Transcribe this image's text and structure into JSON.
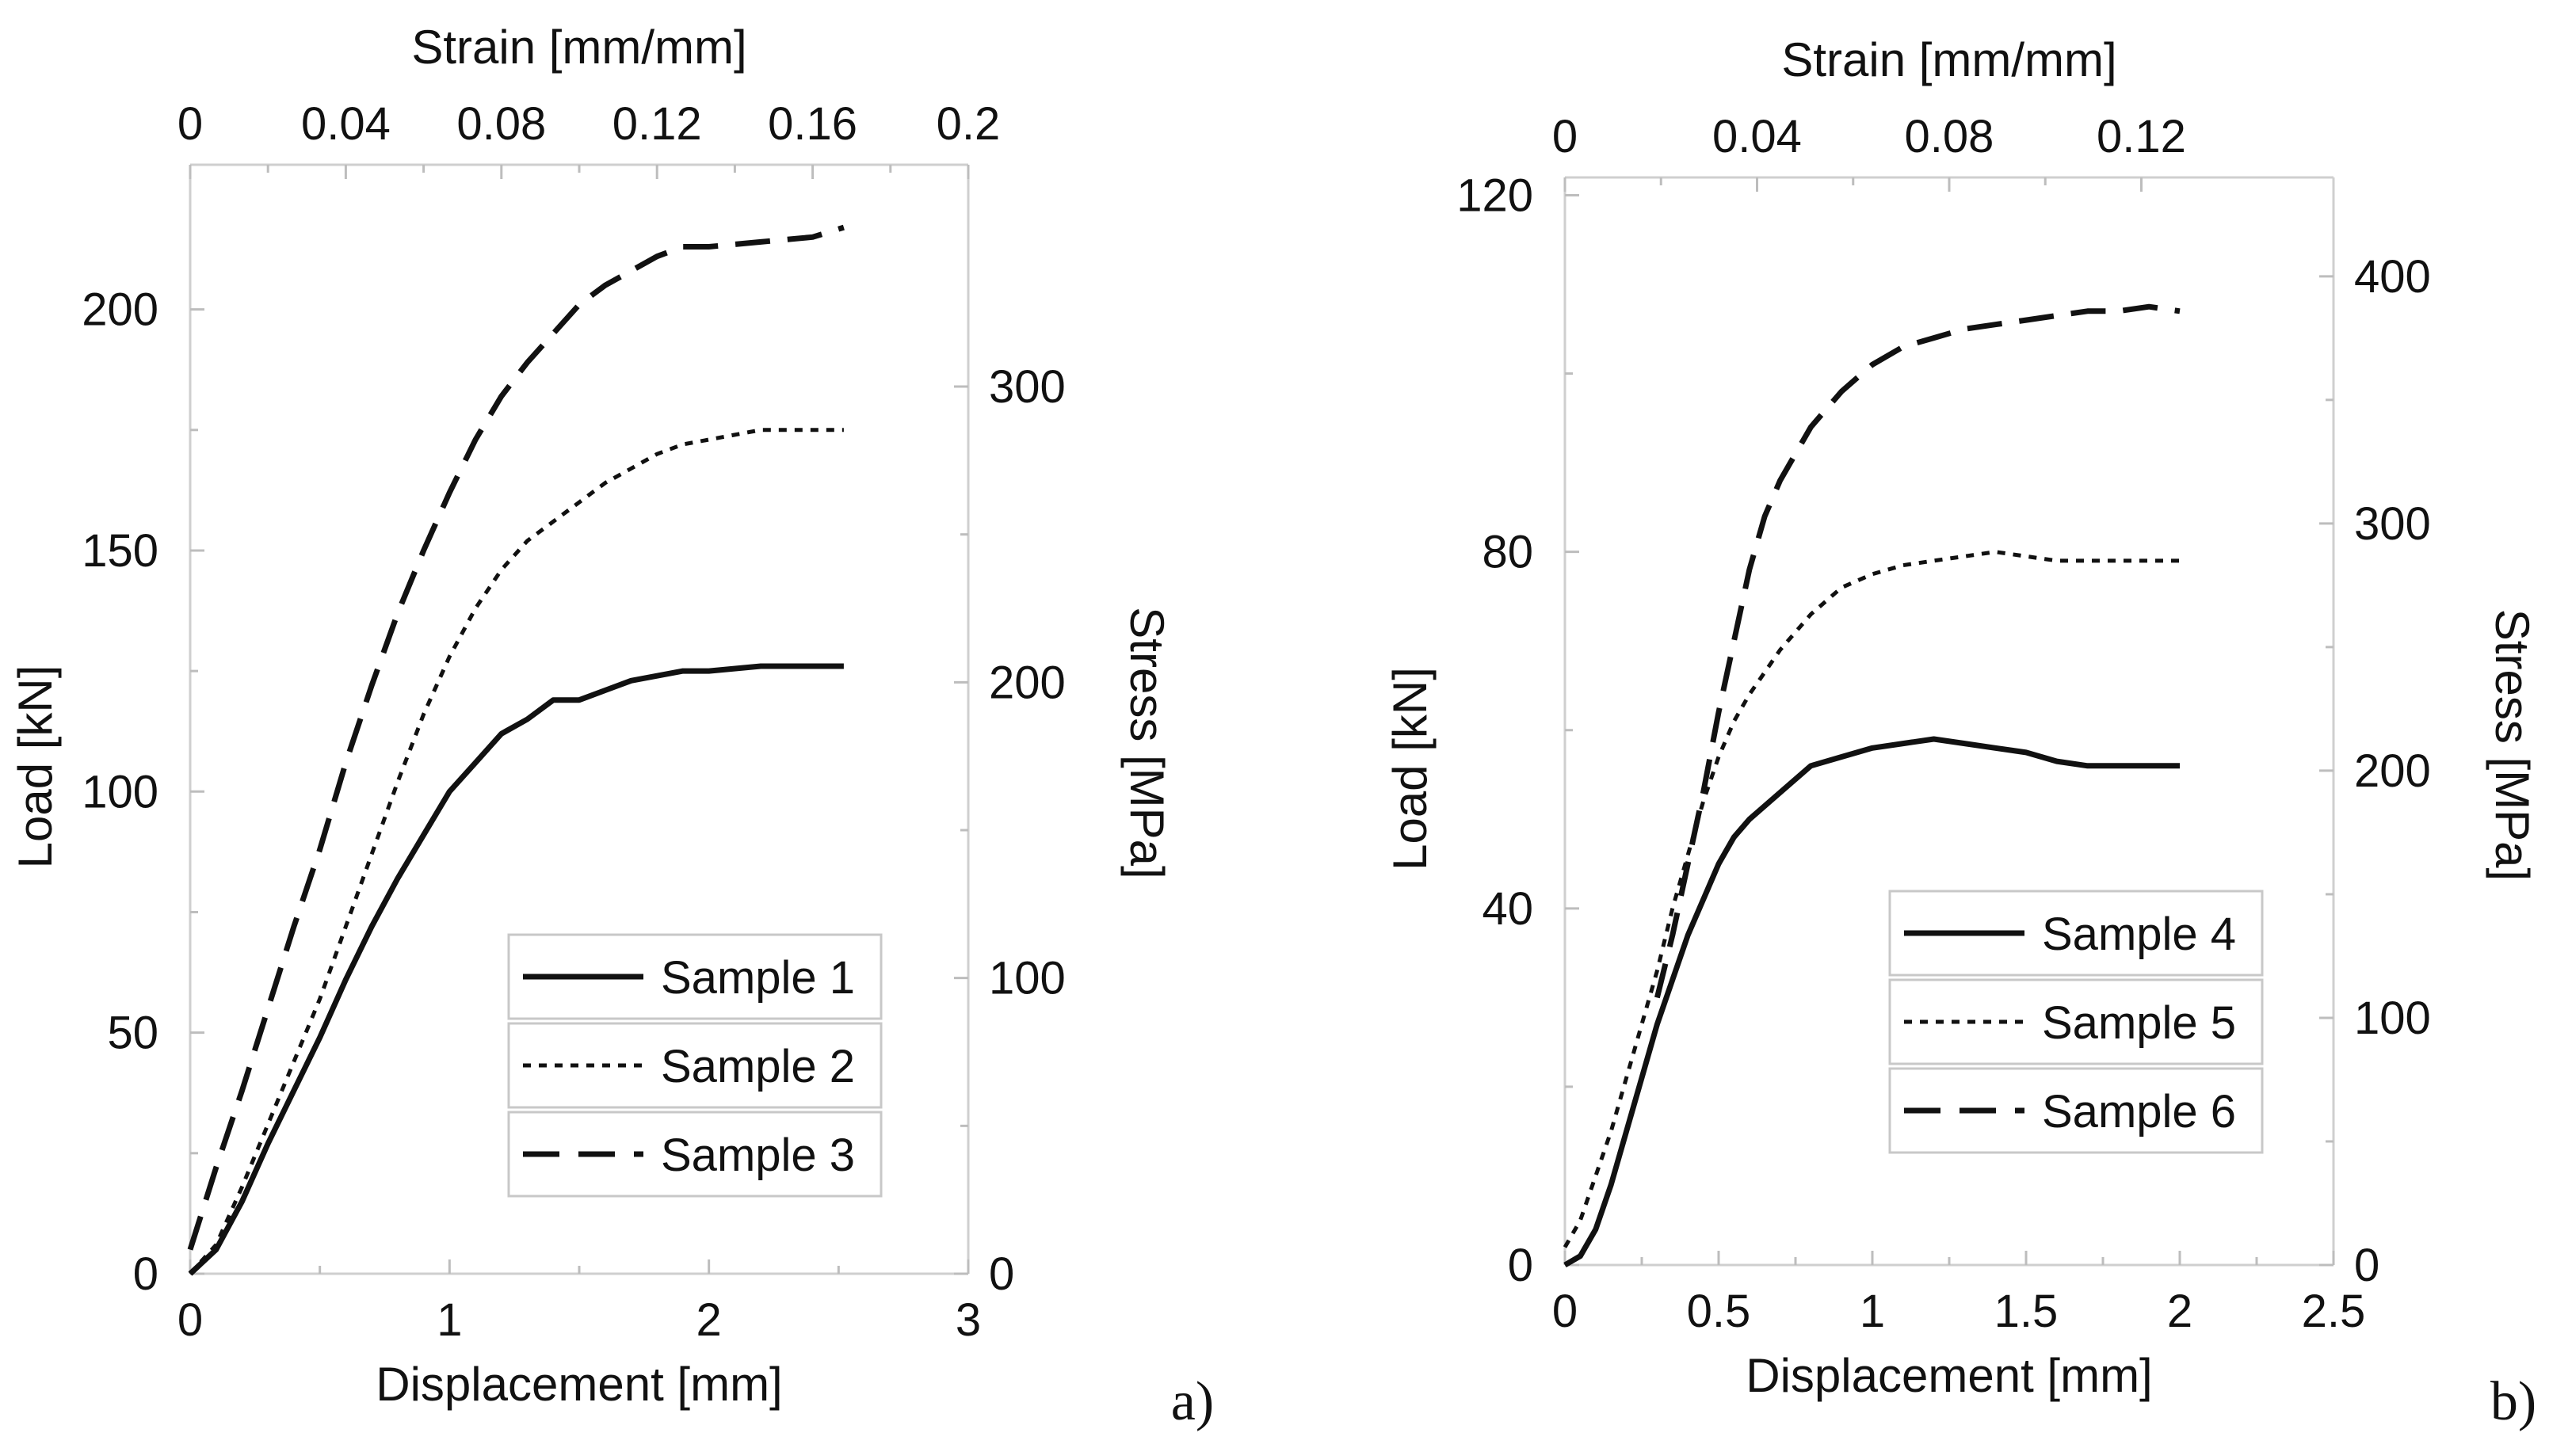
{
  "chart_data": [
    {
      "type": "line",
      "panel_label": "a)",
      "xlabel": "Displacement [mm]",
      "ylabel": "Load [kN]",
      "x2label": "Strain [mm/mm]",
      "y2label": "Stress [MPa]",
      "xlim": [
        0,
        3
      ],
      "ylim": [
        0,
        230
      ],
      "x2lim": [
        0,
        0.2
      ],
      "y2lim": [
        0,
        375
      ],
      "x_ticks": [
        0,
        1,
        2,
        3
      ],
      "x_tick_labels": [
        "0",
        "1",
        "2",
        "3"
      ],
      "y_ticks": [
        0,
        50,
        100,
        150,
        200
      ],
      "y_tick_labels": [
        "0",
        "50",
        "100",
        "150",
        "200"
      ],
      "x2_ticks": [
        0,
        0.04,
        0.08,
        0.12,
        0.16,
        0.2
      ],
      "x2_tick_labels": [
        "0",
        "0.04",
        "0.08",
        "0.12",
        "0.16",
        "0.2"
      ],
      "y2_ticks": [
        0,
        100,
        200,
        300
      ],
      "y2_tick_labels": [
        "0",
        "100",
        "200",
        "300"
      ],
      "legend_position": "bottom-right",
      "series": [
        {
          "name": "Sample 1",
          "style": "solid",
          "x": [
            0,
            0.1,
            0.2,
            0.3,
            0.4,
            0.5,
            0.6,
            0.7,
            0.8,
            0.9,
            1.0,
            1.1,
            1.2,
            1.3,
            1.4,
            1.5,
            1.6,
            1.7,
            1.8,
            1.9,
            2.0,
            2.2,
            2.4,
            2.52
          ],
          "y": [
            0,
            5,
            15,
            27,
            38,
            49,
            61,
            72,
            82,
            91,
            100,
            106,
            112,
            115,
            119,
            119,
            121,
            123,
            124,
            125,
            125,
            126,
            126,
            126
          ]
        },
        {
          "name": "Sample 2",
          "style": "dotted",
          "x": [
            0,
            0.1,
            0.2,
            0.3,
            0.4,
            0.5,
            0.6,
            0.7,
            0.8,
            0.9,
            1.0,
            1.1,
            1.2,
            1.3,
            1.4,
            1.5,
            1.6,
            1.7,
            1.8,
            1.9,
            2.0,
            2.2,
            2.4,
            2.52
          ],
          "y": [
            0,
            6,
            18,
            31,
            44,
            57,
            72,
            87,
            102,
            116,
            128,
            138,
            146,
            152,
            156,
            160,
            164,
            167,
            170,
            172,
            173,
            175,
            175,
            175
          ]
        },
        {
          "name": "Sample 3",
          "style": "dashed",
          "x": [
            0,
            0.1,
            0.2,
            0.3,
            0.4,
            0.5,
            0.6,
            0.7,
            0.8,
            0.9,
            1.0,
            1.1,
            1.2,
            1.3,
            1.4,
            1.5,
            1.6,
            1.7,
            1.8,
            1.9,
            2.0,
            2.2,
            2.4,
            2.52
          ],
          "y": [
            5,
            22,
            38,
            55,
            72,
            88,
            106,
            122,
            137,
            150,
            162,
            173,
            182,
            189,
            195,
            201,
            205,
            208,
            211,
            213,
            213,
            214,
            215,
            217
          ]
        }
      ]
    },
    {
      "type": "line",
      "panel_label": "b)",
      "xlabel": "Displacement [mm]",
      "ylabel": "Load [kN]",
      "x2label": "Strain [mm/mm]",
      "y2label": "Stress [MPa]",
      "xlim": [
        0,
        2.5
      ],
      "ylim": [
        0,
        122
      ],
      "x2lim": [
        0,
        0.16
      ],
      "y2lim": [
        0,
        440
      ],
      "x_ticks": [
        0,
        0.5,
        1,
        1.5,
        2,
        2.5
      ],
      "x_tick_labels": [
        "0",
        "0.5",
        "1",
        "1.5",
        "2",
        "2.5"
      ],
      "y_ticks": [
        0,
        40,
        80,
        120
      ],
      "y_tick_labels": [
        "0",
        "40",
        "80",
        "120"
      ],
      "x2_ticks": [
        0,
        0.04,
        0.08,
        0.12
      ],
      "x2_tick_labels": [
        "0",
        "0.04",
        "0.08",
        "0.12"
      ],
      "y2_ticks": [
        0,
        100,
        200,
        300,
        400
      ],
      "y2_tick_labels": [
        "0",
        "100",
        "200",
        "300",
        "400"
      ],
      "legend_position": "bottom-right",
      "series": [
        {
          "name": "Sample 4",
          "style": "solid",
          "x": [
            0,
            0.05,
            0.1,
            0.15,
            0.2,
            0.25,
            0.3,
            0.35,
            0.4,
            0.45,
            0.5,
            0.55,
            0.6,
            0.7,
            0.8,
            0.9,
            1.0,
            1.1,
            1.2,
            1.3,
            1.4,
            1.5,
            1.6,
            1.7,
            1.8,
            1.9,
            2.0
          ],
          "y": [
            0,
            1,
            4,
            9,
            15,
            21,
            27,
            32,
            37,
            41,
            45,
            48,
            50,
            53,
            56,
            57,
            58,
            58.5,
            59,
            58.5,
            58,
            57.5,
            56.5,
            56,
            56,
            56,
            56
          ]
        },
        {
          "name": "Sample 5",
          "style": "dotted",
          "x": [
            0,
            0.05,
            0.1,
            0.15,
            0.2,
            0.25,
            0.3,
            0.35,
            0.4,
            0.45,
            0.5,
            0.55,
            0.6,
            0.7,
            0.8,
            0.9,
            1.0,
            1.1,
            1.2,
            1.3,
            1.4,
            1.5,
            1.6,
            1.7,
            1.8,
            1.9,
            2.0
          ],
          "y": [
            2,
            5,
            10,
            15,
            21,
            27,
            33,
            40,
            46,
            52,
            57,
            61,
            64,
            69,
            73,
            76,
            77.5,
            78.5,
            79,
            79.5,
            80,
            79.5,
            79,
            79,
            79,
            79,
            79
          ]
        },
        {
          "name": "Sample 6",
          "style": "dashed",
          "x": [
            0.3,
            0.35,
            0.4,
            0.45,
            0.5,
            0.55,
            0.6,
            0.65,
            0.7,
            0.8,
            0.9,
            1.0,
            1.1,
            1.2,
            1.3,
            1.4,
            1.5,
            1.6,
            1.7,
            1.8,
            1.9,
            2.0
          ],
          "y": [
            30,
            37,
            45,
            53,
            62,
            70,
            78,
            84,
            88,
            94,
            98,
            101,
            103,
            104,
            105,
            105.5,
            106,
            106.5,
            107,
            107,
            107.5,
            107
          ]
        }
      ]
    }
  ]
}
